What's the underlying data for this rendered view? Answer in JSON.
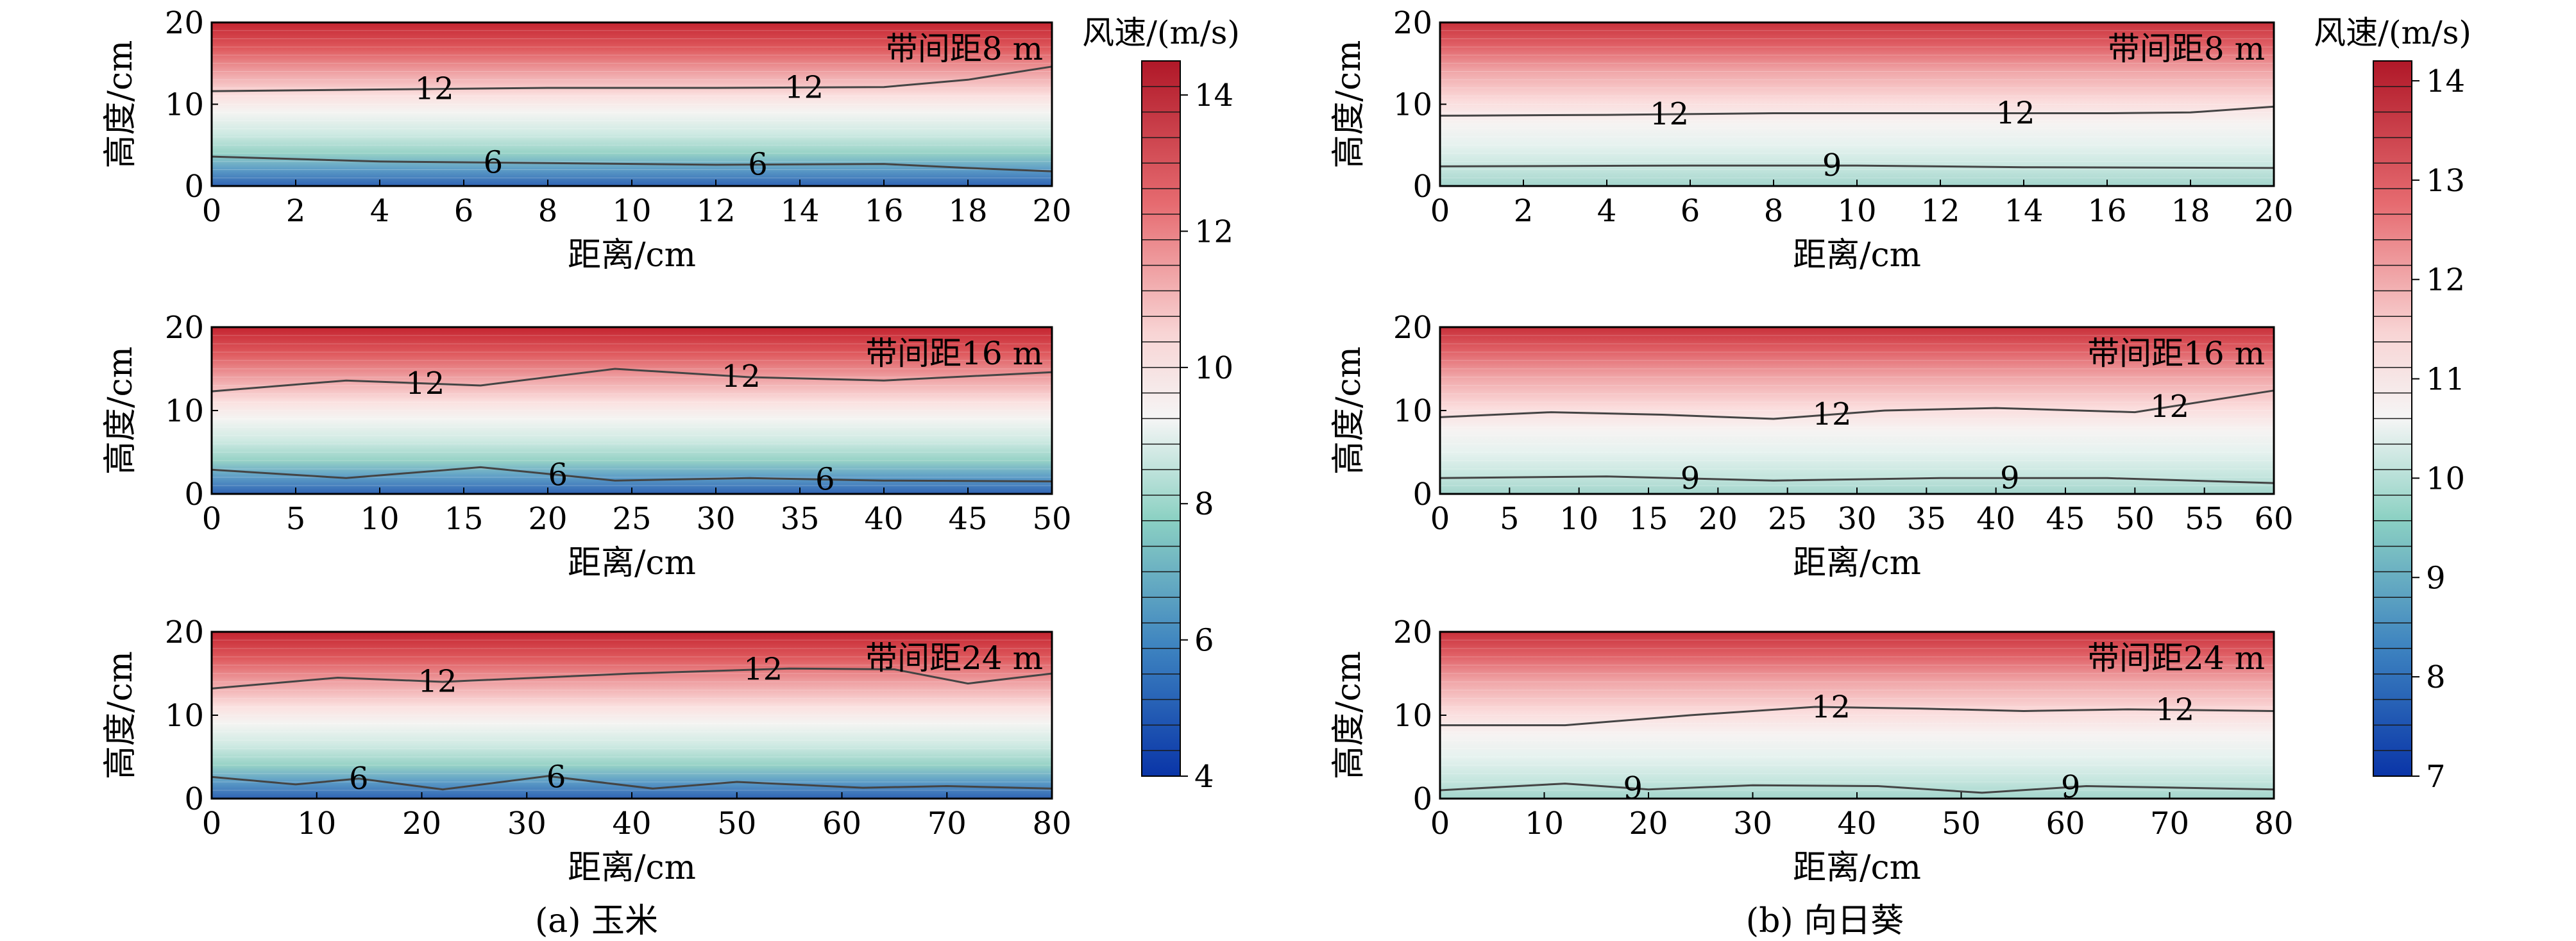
{
  "chart_data": [
    {
      "type": "heatmap",
      "group": "a",
      "band_label": "带间距8 m",
      "xlabel": "距离/cm",
      "ylabel": "高度/cm",
      "xlim": [
        0,
        20
      ],
      "ylim": [
        0,
        20
      ],
      "xticks": [
        0,
        2,
        4,
        6,
        8,
        10,
        12,
        14,
        16,
        18,
        20
      ],
      "yticks": [
        0,
        10,
        20
      ],
      "contours": [
        {
          "level": 12,
          "label": "12",
          "points": [
            [
              0,
              11.6
            ],
            [
              4,
              11.8
            ],
            [
              8,
              12.0
            ],
            [
              12,
              12.0
            ],
            [
              16,
              12.1
            ],
            [
              18,
              13.0
            ],
            [
              20,
              14.6
            ]
          ],
          "label_x": [
            5.3,
            14.1
          ]
        },
        {
          "level": 6,
          "label": "6",
          "points": [
            [
              0,
              3.6
            ],
            [
              4,
              3.0
            ],
            [
              8,
              2.8
            ],
            [
              12,
              2.6
            ],
            [
              16,
              2.7
            ],
            [
              18,
              2.2
            ],
            [
              20,
              1.8
            ]
          ],
          "label_x": [
            6.7,
            13.0
          ]
        }
      ]
    },
    {
      "type": "heatmap",
      "group": "a",
      "band_label": "带间距16 m",
      "xlabel": "距离/cm",
      "ylabel": "高度/cm",
      "xlim": [
        0,
        50
      ],
      "ylim": [
        0,
        20
      ],
      "xticks": [
        0,
        5,
        10,
        15,
        20,
        25,
        30,
        35,
        40,
        45,
        50
      ],
      "yticks": [
        0,
        10,
        20
      ],
      "contours": [
        {
          "level": 12,
          "label": "12",
          "points": [
            [
              0,
              12.3
            ],
            [
              8,
              13.6
            ],
            [
              16,
              13.0
            ],
            [
              24,
              15.0
            ],
            [
              32,
              14.0
            ],
            [
              40,
              13.6
            ],
            [
              50,
              14.6
            ]
          ],
          "label_x": [
            12.7,
            31.5
          ]
        },
        {
          "level": 6,
          "label": "6",
          "points": [
            [
              0,
              2.9
            ],
            [
              8,
              1.9
            ],
            [
              16,
              3.2
            ],
            [
              24,
              1.6
            ],
            [
              32,
              1.9
            ],
            [
              40,
              1.6
            ],
            [
              50,
              1.5
            ]
          ],
          "label_x": [
            20.6,
            36.5
          ]
        }
      ]
    },
    {
      "type": "heatmap",
      "group": "a",
      "band_label": "带间距24 m",
      "xlabel": "距离/cm",
      "ylabel": "高度/cm",
      "xlim": [
        0,
        80
      ],
      "ylim": [
        0,
        20
      ],
      "xticks": [
        0,
        10,
        20,
        30,
        40,
        50,
        60,
        70,
        80
      ],
      "yticks": [
        0,
        10,
        20
      ],
      "contours": [
        {
          "level": 12,
          "label": "12",
          "points": [
            [
              0,
              13.2
            ],
            [
              12,
              14.5
            ],
            [
              22,
              14.0
            ],
            [
              40,
              15.0
            ],
            [
              55,
              15.6
            ],
            [
              65,
              15.5
            ],
            [
              72,
              13.8
            ],
            [
              80,
              15.0
            ]
          ],
          "label_x": [
            21.5,
            52.5
          ]
        },
        {
          "level": 6,
          "label": "6",
          "points": [
            [
              0,
              2.6
            ],
            [
              8,
              1.7
            ],
            [
              14,
              2.4
            ],
            [
              22,
              1.1
            ],
            [
              32,
              2.7
            ],
            [
              42,
              1.2
            ],
            [
              50,
              2.0
            ],
            [
              62,
              1.3
            ],
            [
              70,
              1.5
            ],
            [
              80,
              1.2
            ]
          ],
          "label_x": [
            14.0,
            32.8
          ]
        }
      ]
    },
    {
      "type": "heatmap",
      "group": "b",
      "band_label": "带间距8 m",
      "xlabel": "距离/cm",
      "ylabel": "高度/cm",
      "xlim": [
        0,
        20
      ],
      "ylim": [
        0,
        20
      ],
      "xticks": [
        0,
        2,
        4,
        6,
        8,
        10,
        12,
        14,
        16,
        18,
        20
      ],
      "yticks": [
        0,
        10,
        20
      ],
      "contours": [
        {
          "level": 12,
          "label": "12",
          "points": [
            [
              0,
              8.6
            ],
            [
              4,
              8.7
            ],
            [
              8,
              8.9
            ],
            [
              12,
              8.9
            ],
            [
              16,
              8.9
            ],
            [
              18,
              9.0
            ],
            [
              20,
              9.7
            ]
          ],
          "label_x": [
            5.5,
            13.8
          ]
        },
        {
          "level": 9,
          "label": "9",
          "points": [
            [
              0,
              2.4
            ],
            [
              6,
              2.5
            ],
            [
              10,
              2.5
            ],
            [
              14,
              2.3
            ],
            [
              20,
              2.2
            ]
          ],
          "label_x": [
            9.4
          ]
        }
      ]
    },
    {
      "type": "heatmap",
      "group": "b",
      "band_label": "带间距16 m",
      "xlabel": "距离/cm",
      "ylabel": "高度/cm",
      "xlim": [
        0,
        60
      ],
      "ylim": [
        0,
        20
      ],
      "xticks": [
        0,
        5,
        10,
        15,
        20,
        25,
        30,
        35,
        40,
        45,
        50,
        55,
        60
      ],
      "yticks": [
        0,
        10,
        20
      ],
      "contours": [
        {
          "level": 12,
          "label": "12",
          "points": [
            [
              0,
              9.2
            ],
            [
              8,
              9.8
            ],
            [
              16,
              9.5
            ],
            [
              24,
              9.0
            ],
            [
              32,
              10.0
            ],
            [
              40,
              10.3
            ],
            [
              50,
              9.8
            ],
            [
              60,
              12.4
            ]
          ],
          "label_x": [
            28.2,
            52.5
          ]
        },
        {
          "level": 9,
          "label": "9",
          "points": [
            [
              0,
              1.9
            ],
            [
              12,
              2.1
            ],
            [
              24,
              1.6
            ],
            [
              36,
              1.9
            ],
            [
              48,
              1.9
            ],
            [
              60,
              1.3
            ]
          ],
          "label_x": [
            18.0,
            41.0
          ]
        }
      ]
    },
    {
      "type": "heatmap",
      "group": "b",
      "band_label": "带间距24 m",
      "xlabel": "距离/cm",
      "ylabel": "高度/cm",
      "xlim": [
        0,
        80
      ],
      "ylim": [
        0,
        20
      ],
      "xticks": [
        0,
        10,
        20,
        30,
        40,
        50,
        60,
        70,
        80
      ],
      "yticks": [
        0,
        10,
        20
      ],
      "contours": [
        {
          "level": 12,
          "label": "12",
          "points": [
            [
              0,
              8.8
            ],
            [
              12,
              8.8
            ],
            [
              24,
              10.0
            ],
            [
              36,
              11.0
            ],
            [
              46,
              10.8
            ],
            [
              56,
              10.5
            ],
            [
              66,
              10.7
            ],
            [
              80,
              10.5
            ]
          ],
          "label_x": [
            37.5,
            70.5
          ]
        },
        {
          "level": 9,
          "label": "9",
          "points": [
            [
              0,
              1.0
            ],
            [
              12,
              1.8
            ],
            [
              20,
              1.1
            ],
            [
              30,
              1.6
            ],
            [
              42,
              1.5
            ],
            [
              52,
              0.7
            ],
            [
              62,
              1.5
            ],
            [
              80,
              1.1
            ]
          ],
          "label_x": [
            18.5,
            60.5
          ]
        }
      ]
    }
  ],
  "colorbars": [
    {
      "title": "风速/(m/s)",
      "min": 4,
      "max": 14.5,
      "ticks": [
        4,
        6,
        8,
        10,
        12,
        14
      ]
    },
    {
      "title": "风速/(m/s)",
      "min": 7,
      "max": 14.2,
      "ticks": [
        7,
        8,
        9,
        10,
        11,
        12,
        13,
        14
      ]
    }
  ],
  "colors": {
    "low": "#0a35a8",
    "mid_low": "#8cd1c3",
    "mid": "#f5f5f5",
    "high": "#b01828",
    "contour": "#444444"
  },
  "captions": {
    "a": "(a) 玉米",
    "b": "(b) 向日葵"
  }
}
